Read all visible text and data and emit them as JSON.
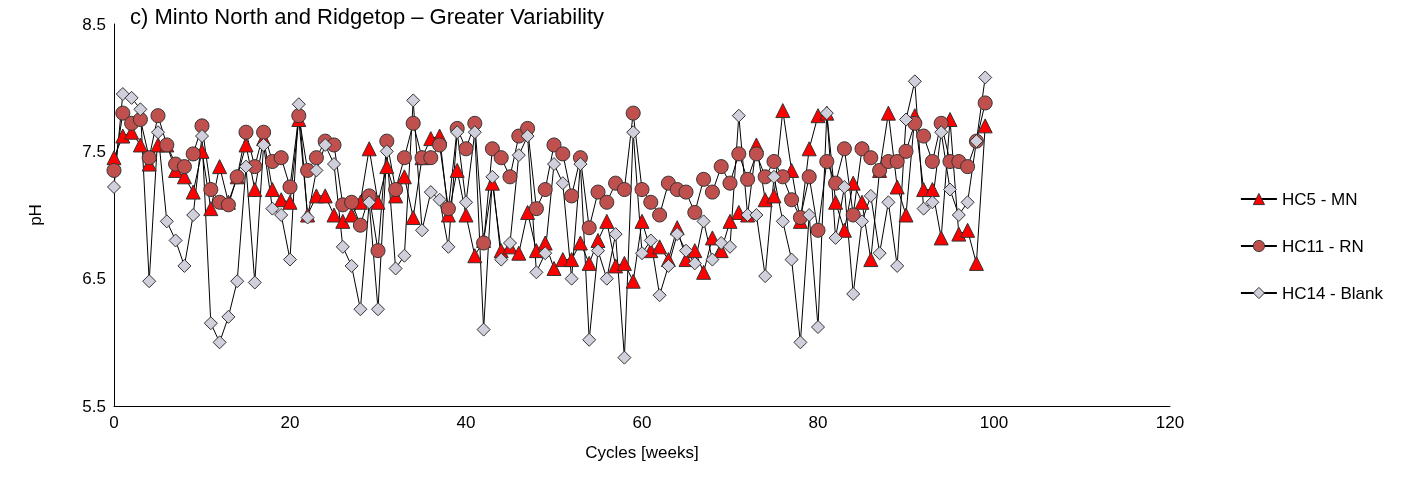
{
  "chart_data": {
    "type": "line",
    "title": "c) Minto North and Ridgetop – Greater Variability",
    "xlabel": "Cycles [weeks]",
    "ylabel": "pH",
    "x": [
      0,
      1,
      2,
      3,
      4,
      5,
      6,
      7,
      8,
      9,
      10,
      11,
      12,
      13,
      14,
      15,
      16,
      17,
      18,
      19,
      20,
      21,
      22,
      23,
      24,
      25,
      26,
      27,
      28,
      29,
      30,
      31,
      32,
      33,
      34,
      35,
      36,
      37,
      38,
      39,
      40,
      41,
      42,
      43,
      44,
      45,
      46,
      47,
      48,
      49,
      50,
      51,
      52,
      53,
      54,
      55,
      56,
      57,
      58,
      59,
      60,
      61,
      62,
      63,
      64,
      65,
      66,
      67,
      68,
      69,
      70,
      71,
      72,
      73,
      74,
      75,
      76,
      77,
      78,
      79,
      80,
      81,
      82,
      83,
      84,
      85,
      86,
      87,
      88,
      89,
      90,
      91,
      92,
      93,
      94,
      95,
      96,
      97,
      98,
      99
    ],
    "series": [
      {
        "name": "HC5 - MN",
        "color": "#ff0000",
        "marker": "triangle",
        "values": [
          7.45,
          7.62,
          7.65,
          7.55,
          7.4,
          7.55,
          7.55,
          7.35,
          7.3,
          7.18,
          7.5,
          7.05,
          7.38,
          7.1,
          7.3,
          7.55,
          7.2,
          7.6,
          7.2,
          7.12,
          7.1,
          7.75,
          7.0,
          7.15,
          7.15,
          7.0,
          6.95,
          7.0,
          7.1,
          7.52,
          7.1,
          7.38,
          7.15,
          7.3,
          6.98,
          7.45,
          7.6,
          7.62,
          7.0,
          7.35,
          7.0,
          6.68,
          6.8,
          7.25,
          6.72,
          6.75,
          6.7,
          7.02,
          6.72,
          6.78,
          6.58,
          6.65,
          6.65,
          6.78,
          6.62,
          6.8,
          6.95,
          6.6,
          6.62,
          6.48,
          6.95,
          6.72,
          6.75,
          6.65,
          6.9,
          6.65,
          6.72,
          6.55,
          6.82,
          6.72,
          6.95,
          7.02,
          7.0,
          7.55,
          7.12,
          7.15,
          7.82,
          7.35,
          6.95,
          7.52,
          7.78,
          7.8,
          7.1,
          6.88,
          7.25,
          7.1,
          6.65,
          7.35,
          7.8,
          7.22,
          7.0,
          7.78,
          7.2,
          7.2,
          6.82,
          7.75,
          6.85,
          6.88,
          6.62,
          7.7
        ]
      },
      {
        "name": "HC11 - RN",
        "color": "#c0504d",
        "marker": "circle",
        "values": [
          7.35,
          7.8,
          7.72,
          7.75,
          7.45,
          7.78,
          7.55,
          7.4,
          7.38,
          7.48,
          7.7,
          7.2,
          7.1,
          7.08,
          7.3,
          7.65,
          7.38,
          7.65,
          7.42,
          7.45,
          7.22,
          7.78,
          7.35,
          7.45,
          7.58,
          7.55,
          7.08,
          7.1,
          6.92,
          7.15,
          6.72,
          7.58,
          7.2,
          7.45,
          7.72,
          7.45,
          7.45,
          7.55,
          7.05,
          7.68,
          7.52,
          7.72,
          6.78,
          7.52,
          7.45,
          7.3,
          7.62,
          7.68,
          7.05,
          7.2,
          7.55,
          7.48,
          7.15,
          7.45,
          6.9,
          7.18,
          7.1,
          7.25,
          7.2,
          7.8,
          7.2,
          7.1,
          7.0,
          7.25,
          7.2,
          7.18,
          7.02,
          7.28,
          7.18,
          7.38,
          7.25,
          7.48,
          7.28,
          7.48,
          7.3,
          7.42,
          7.3,
          7.12,
          6.98,
          7.3,
          6.88,
          7.42,
          7.25,
          7.52,
          7.0,
          7.52,
          7.45,
          7.35,
          7.42,
          7.42,
          7.5,
          7.72,
          7.62,
          7.42,
          7.72,
          7.42,
          7.42,
          7.38,
          7.58,
          7.88
        ]
      },
      {
        "name": "HC14 - Blank",
        "color": "#d0d0dc",
        "marker": "diamond",
        "values": [
          7.22,
          7.95,
          7.92,
          7.83,
          6.48,
          7.65,
          6.95,
          6.8,
          6.6,
          7.0,
          7.62,
          6.15,
          6.0,
          6.2,
          6.48,
          7.38,
          6.47,
          7.55,
          7.05,
          7.0,
          6.65,
          7.87,
          6.98,
          7.35,
          7.55,
          7.4,
          6.75,
          6.6,
          6.26,
          7.1,
          6.26,
          7.5,
          6.58,
          6.68,
          7.9,
          6.88,
          7.18,
          7.12,
          6.75,
          7.65,
          7.1,
          7.65,
          6.1,
          7.3,
          6.65,
          6.78,
          7.47,
          7.62,
          6.55,
          6.7,
          7.4,
          7.25,
          6.5,
          7.4,
          6.02,
          6.72,
          6.5,
          6.85,
          5.88,
          7.65,
          6.7,
          6.8,
          6.37,
          6.6,
          6.85,
          6.72,
          6.62,
          6.95,
          6.65,
          6.78,
          6.75,
          7.78,
          7.0,
          7.0,
          6.52,
          7.3,
          6.95,
          6.65,
          6.0,
          7.0,
          6.12,
          7.8,
          6.82,
          7.22,
          6.38,
          6.95,
          7.15,
          6.7,
          7.1,
          6.6,
          7.75,
          8.05,
          7.05,
          7.1,
          7.65,
          7.2,
          7.0,
          7.1,
          7.58,
          8.08
        ]
      }
    ],
    "xlim": [
      0,
      120
    ],
    "xticks": [
      0,
      20,
      40,
      60,
      80,
      100,
      120
    ],
    "ylim": [
      5.5,
      8.5
    ],
    "yticks": [
      5.5,
      6.5,
      7.5,
      8.5
    ],
    "grid": false,
    "legend": "right"
  }
}
